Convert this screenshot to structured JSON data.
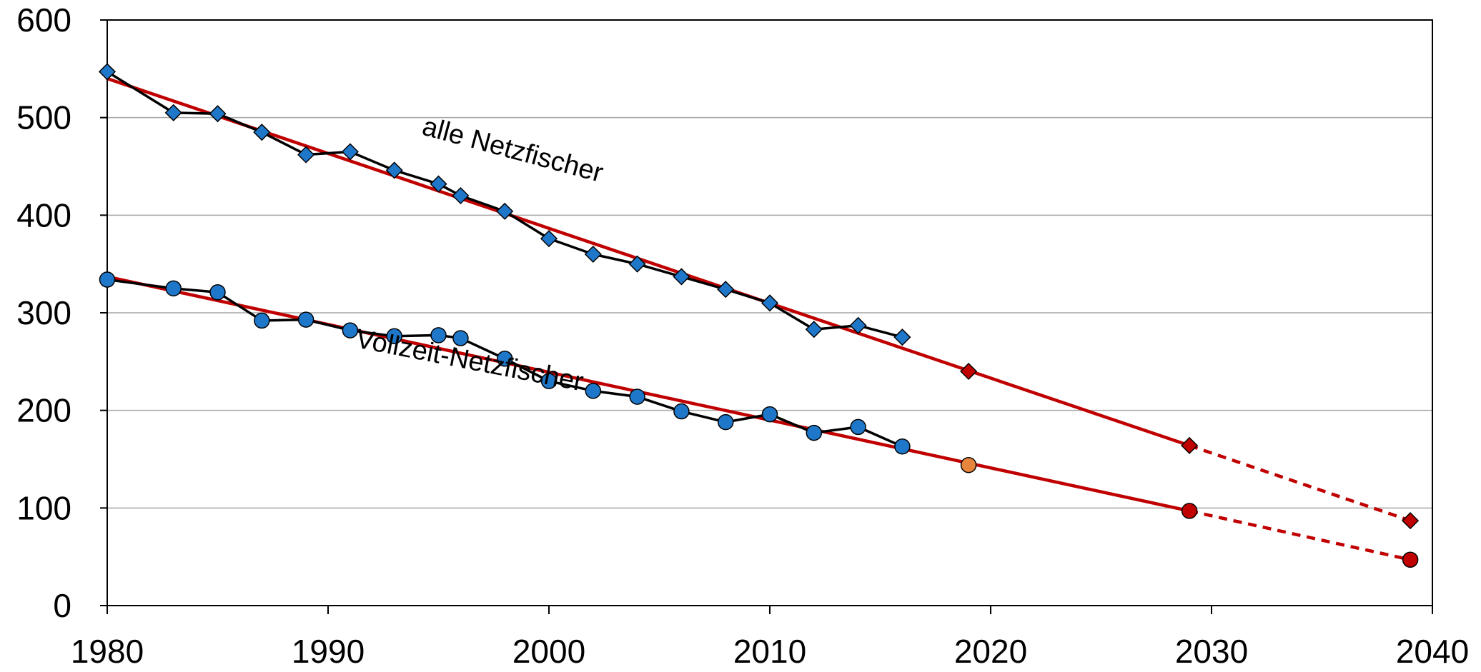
{
  "chart_data": {
    "type": "line",
    "title": "",
    "xlabel": "",
    "ylabel": "",
    "xlim": [
      1980,
      2040
    ],
    "ylim": [
      0,
      600
    ],
    "x_ticks": [
      "1980",
      "1990",
      "2000",
      "2010",
      "2020",
      "2030",
      "2040"
    ],
    "y_ticks": [
      "0",
      "100",
      "200",
      "300",
      "400",
      "500",
      "600"
    ],
    "grid": "horizontal",
    "legend": "none",
    "series": [
      {
        "name": "alle Netzfischer",
        "marker": "diamond",
        "color": "#1f77c9",
        "x": [
          1980,
          1983,
          1985,
          1987,
          1989,
          1991,
          1993,
          1995,
          1996,
          1998,
          2000,
          2002,
          2004,
          2006,
          2008,
          2010,
          2012,
          2014,
          2016
        ],
        "y": [
          547,
          505,
          504,
          485,
          462,
          465,
          446,
          432,
          420,
          404,
          376,
          360,
          350,
          337,
          324,
          310,
          283,
          287,
          275
        ]
      },
      {
        "name": "Vollzeit-Netzfischer",
        "marker": "circle",
        "color": "#1f77c9",
        "x": [
          1980,
          1983,
          1985,
          1987,
          1989,
          1991,
          1993,
          1995,
          1996,
          1998,
          2000,
          2002,
          2004,
          2006,
          2008,
          2010,
          2012,
          2014,
          2016
        ],
        "y": [
          334,
          325,
          321,
          292,
          293,
          282,
          276,
          277,
          274,
          253,
          230,
          220,
          214,
          199,
          188,
          196,
          177,
          183,
          163
        ]
      }
    ],
    "trends": [
      {
        "series": "alle Netzfischer",
        "color": "#c00000",
        "solid": [
          [
            1980,
            540
          ],
          [
            2029,
            164
          ]
        ],
        "dashed": [
          [
            2029,
            164
          ],
          [
            2039,
            87
          ]
        ],
        "projected_points": [
          {
            "x": 2019,
            "y": 240,
            "color": "#c00000"
          },
          {
            "x": 2029,
            "y": 164,
            "color": "#c00000"
          },
          {
            "x": 2039,
            "y": 87,
            "color": "#c00000"
          }
        ]
      },
      {
        "series": "Vollzeit-Netzfischer",
        "color": "#c00000",
        "solid": [
          [
            1980,
            337
          ],
          [
            2029,
            97
          ]
        ],
        "dashed": [
          [
            2029,
            97
          ],
          [
            2039,
            47
          ]
        ],
        "projected_points": [
          {
            "x": 2019,
            "y": 144,
            "color": "#e8853d"
          },
          {
            "x": 2029,
            "y": 97,
            "color": "#c00000"
          },
          {
            "x": 2039,
            "y": 47,
            "color": "#c00000"
          }
        ]
      }
    ],
    "annotations": [
      {
        "text": "alle Netzfischer",
        "x": 1994.2,
        "y": 483,
        "angle": 15
      },
      {
        "text": "Vollzeit-Netzfischer",
        "x": 1991.2,
        "y": 265,
        "angle": 11
      }
    ]
  }
}
